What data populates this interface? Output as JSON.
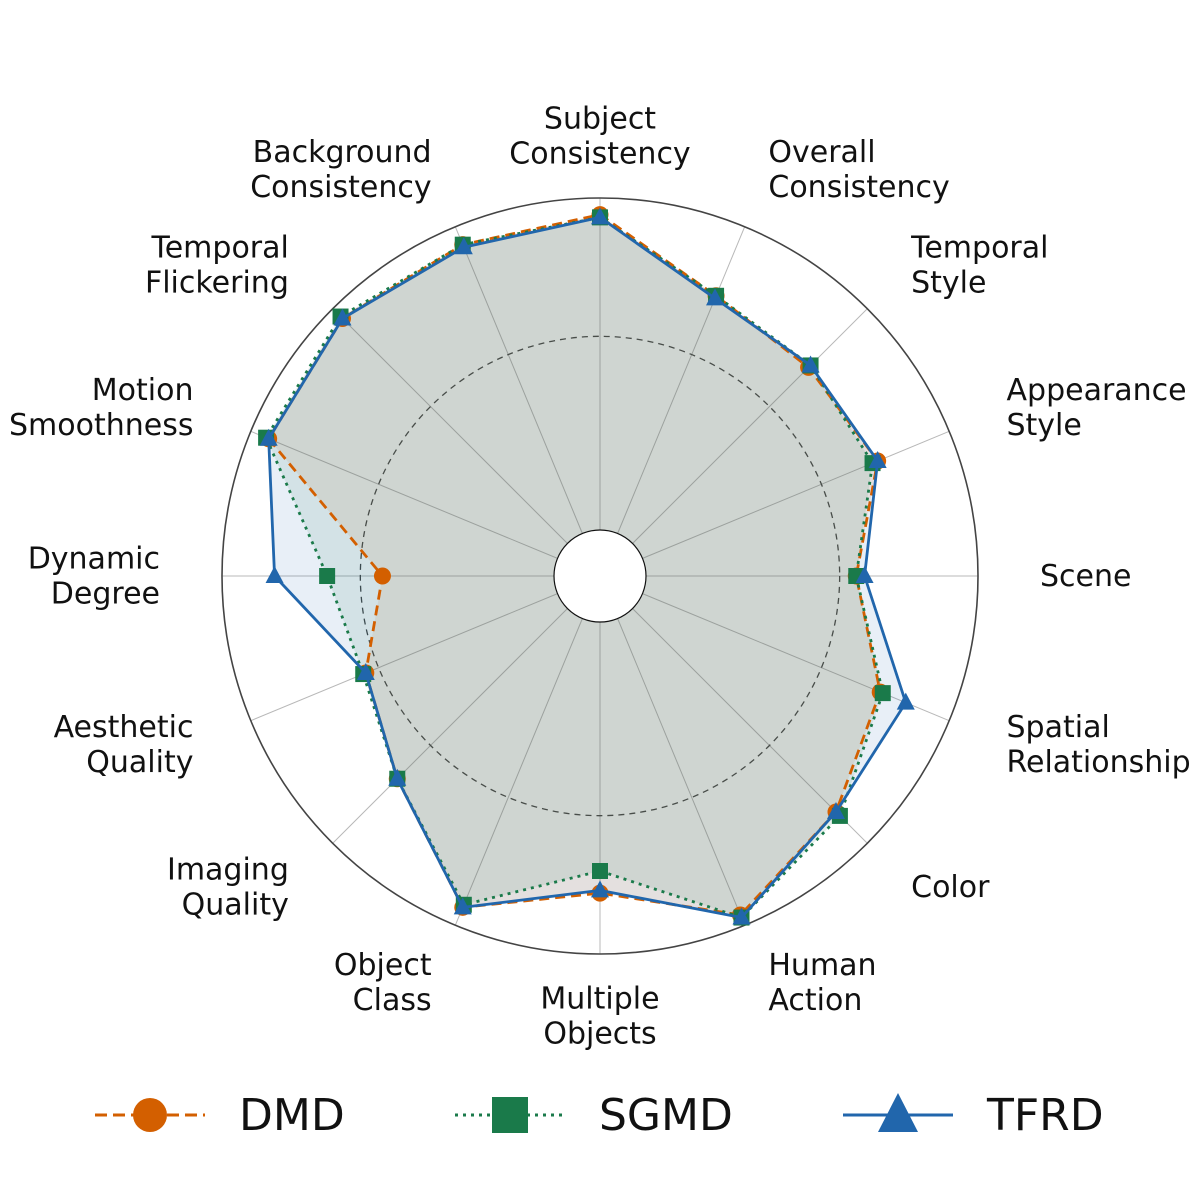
{
  "chart_data": {
    "type": "radar",
    "categories": [
      [
        "Subject",
        "Consistency"
      ],
      [
        "Overall",
        "Consistency"
      ],
      [
        "Temporal",
        "Style"
      ],
      [
        "Appearance",
        "Style"
      ],
      [
        "Scene"
      ],
      [
        "Spatial",
        "Relationship"
      ],
      [
        "Color"
      ],
      [
        "Human",
        "Action"
      ],
      [
        "Multiple",
        "Objects"
      ],
      [
        "Object",
        "Class"
      ],
      [
        "Imaging",
        "Quality"
      ],
      [
        "Aesthetic",
        "Quality"
      ],
      [
        "Dynamic",
        "Degree"
      ],
      [
        "Motion",
        "Smoothness"
      ],
      [
        "Temporal",
        "Flickering"
      ],
      [
        "Background",
        "Consistency"
      ]
    ],
    "rlim": [
      -0.2,
      1.0
    ],
    "grid": true,
    "legend_placement": "bottom",
    "series": [
      {
        "name": "DMD",
        "color": "#d35f00",
        "linestyle": "dashed",
        "marker": "circle",
        "values": [
          0.94,
          0.73,
          0.7,
          0.72,
          0.56,
          0.73,
          0.84,
          0.96,
          0.78,
          0.93,
          0.67,
          0.55,
          0.42,
          0.93,
          0.95,
          0.93
        ]
      },
      {
        "name": "SGMD",
        "color": "#1a7a4a",
        "linestyle": "dotted",
        "marker": "square",
        "values": [
          0.93,
          0.73,
          0.71,
          0.7,
          0.56,
          0.74,
          0.86,
          0.97,
          0.7,
          0.92,
          0.67,
          0.56,
          0.62,
          0.94,
          0.96,
          0.93
        ]
      },
      {
        "name": "TFRD",
        "color": "#2166ac",
        "linestyle": "solid",
        "marker": "triangle",
        "values": [
          0.93,
          0.72,
          0.71,
          0.72,
          0.59,
          0.83,
          0.84,
          0.97,
          0.77,
          0.93,
          0.67,
          0.55,
          0.81,
          0.93,
          0.95,
          0.92
        ]
      }
    ]
  }
}
